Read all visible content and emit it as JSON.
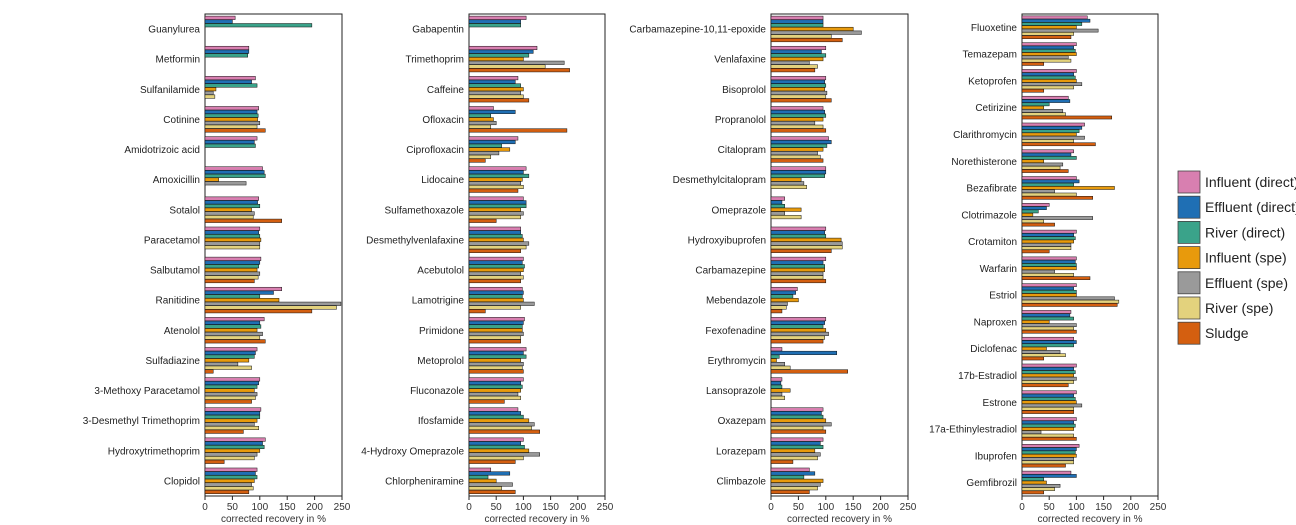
{
  "chart_data": {
    "type": "bar",
    "orientation": "horizontal",
    "grid": false,
    "legend_position": "right",
    "series_names": [
      "Influent (direct)",
      "Effluent (direct)",
      "River (direct)",
      "Influent (spe)",
      "Effluent (spe)",
      "River (spe)",
      "Sludge"
    ],
    "series_colors": [
      "#d87fb0",
      "#1f6fb4",
      "#3aa38a",
      "#e89a0c",
      "#9a9a9a",
      "#e3d27d",
      "#d45f10"
    ],
    "panels": [
      {
        "xlabel": "corrected recovery in %",
        "xlim": [
          0,
          250
        ],
        "xticks": [
          0,
          50,
          100,
          150,
          200,
          250
        ],
        "categories": [
          {
            "name": "Guanylurea",
            "values": [
              55,
              50,
              195,
              0,
              0,
              0,
              0
            ]
          },
          {
            "name": "Metformin",
            "values": [
              80,
              80,
              78,
              0,
              0,
              0,
              0
            ]
          },
          {
            "name": "Sulfanilamide",
            "values": [
              92,
              85,
              95,
              20,
              15,
              18,
              0
            ]
          },
          {
            "name": "Cotinine",
            "values": [
              98,
              95,
              97,
              96,
              100,
              95,
              110
            ]
          },
          {
            "name": "Amidotrizoic acid",
            "values": [
              95,
              90,
              92,
              0,
              0,
              0,
              0
            ]
          },
          {
            "name": "Amoxicillin",
            "values": [
              105,
              108,
              110,
              25,
              75,
              0,
              0
            ]
          },
          {
            "name": "Sotalol",
            "values": [
              98,
              96,
              100,
              85,
              90,
              88,
              140
            ]
          },
          {
            "name": "Paracetamol",
            "values": [
              100,
              98,
              100,
              102,
              100,
              100,
              0
            ]
          },
          {
            "name": "Salbutamol",
            "values": [
              102,
              100,
              98,
              95,
              100,
              97,
              90
            ]
          },
          {
            "name": "Ranitidine",
            "values": [
              140,
              125,
              100,
              135,
              248,
              240,
              195
            ]
          },
          {
            "name": "Atenolol",
            "values": [
              108,
              100,
              102,
              95,
              105,
              100,
              110
            ]
          },
          {
            "name": "Sulfadiazine",
            "values": [
              95,
              92,
              90,
              80,
              60,
              85,
              15
            ]
          },
          {
            "name": "3-Methoxy Paracetamol",
            "values": [
              100,
              98,
              95,
              90,
              95,
              92,
              85
            ]
          },
          {
            "name": "3-Desmethyl Trimethoprim",
            "values": [
              102,
              100,
              100,
              95,
              90,
              98,
              70
            ]
          },
          {
            "name": "Hydroxytrimethoprim",
            "values": [
              110,
              105,
              108,
              100,
              95,
              90,
              35
            ]
          },
          {
            "name": "Clopidol",
            "values": [
              95,
              92,
              95,
              90,
              85,
              88,
              80
            ]
          }
        ]
      },
      {
        "xlabel": "corrected recovery in %",
        "xlim": [
          0,
          250
        ],
        "xticks": [
          0,
          50,
          100,
          150,
          200,
          250
        ],
        "categories": [
          {
            "name": "Gabapentin",
            "values": [
              105,
              95,
              95,
              0,
              0,
              0,
              0
            ]
          },
          {
            "name": "Trimethoprim",
            "values": [
              125,
              118,
              110,
              100,
              175,
              140,
              185
            ]
          },
          {
            "name": "Caffeine",
            "values": [
              90,
              85,
              95,
              100,
              95,
              100,
              110
            ]
          },
          {
            "name": "Ofloxacin",
            "values": [
              45,
              85,
              40,
              45,
              50,
              40,
              180
            ]
          },
          {
            "name": "Ciprofloxacin",
            "values": [
              90,
              85,
              60,
              75,
              55,
              40,
              30
            ]
          },
          {
            "name": "Lidocaine",
            "values": [
              105,
              100,
              110,
              98,
              95,
              100,
              90
            ]
          },
          {
            "name": "Sulfamethoxazole",
            "values": [
              100,
              105,
              105,
              95,
              100,
              95,
              50
            ]
          },
          {
            "name": "Desmethylvenlafaxine",
            "values": [
              95,
              95,
              98,
              100,
              110,
              105,
              95
            ]
          },
          {
            "name": "Acebutolol",
            "values": [
              100,
              98,
              102,
              100,
              95,
              100,
              95
            ]
          },
          {
            "name": "Lamotrigine",
            "values": [
              98,
              100,
              98,
              100,
              120,
              95,
              30
            ]
          },
          {
            "name": "Primidone",
            "values": [
              102,
              100,
              98,
              98,
              100,
              95,
              95
            ]
          },
          {
            "name": "Metoprolol",
            "values": [
              105,
              100,
              105,
              95,
              100,
              98,
              100
            ]
          },
          {
            "name": "Fluconazole",
            "values": [
              100,
              95,
              98,
              95,
              90,
              95,
              65
            ]
          },
          {
            "name": "Ifosfamide",
            "values": [
              90,
              95,
              100,
              110,
              120,
              115,
              130
            ]
          },
          {
            "name": "4-Hydroxy Omeprazole",
            "values": [
              100,
              95,
              102,
              110,
              130,
              100,
              85
            ]
          },
          {
            "name": "Chlorpheniramine",
            "values": [
              40,
              75,
              35,
              50,
              80,
              60,
              85
            ]
          }
        ]
      },
      {
        "xlabel": "corrected recovery in %",
        "xlim": [
          0,
          250
        ],
        "xticks": [
          0,
          50,
          100,
          150,
          200,
          250
        ],
        "categories": [
          {
            "name": "Carbamazepine-10,11-epoxide",
            "values": [
              95,
              95,
              95,
              150,
              165,
              110,
              130
            ]
          },
          {
            "name": "Venlafaxine",
            "values": [
              100,
              92,
              100,
              95,
              70,
              85,
              80
            ]
          },
          {
            "name": "Bisoprolol",
            "values": [
              100,
              98,
              100,
              98,
              102,
              100,
              110
            ]
          },
          {
            "name": "Propranolol",
            "values": [
              95,
              98,
              100,
              95,
              80,
              95,
              100
            ]
          },
          {
            "name": "Citalopram",
            "values": [
              105,
              110,
              102,
              95,
              85,
              90,
              95
            ]
          },
          {
            "name": "Desmethylcitalopram",
            "values": [
              100,
              100,
              98,
              55,
              60,
              65,
              0
            ]
          },
          {
            "name": "Omeprazole",
            "values": [
              25,
              20,
              25,
              55,
              25,
              55,
              0
            ]
          },
          {
            "name": "Hydroxyibuprofen",
            "values": [
              100,
              98,
              100,
              128,
              130,
              130,
              110
            ]
          },
          {
            "name": "Carbamazepine",
            "values": [
              100,
              95,
              98,
              98,
              95,
              95,
              100
            ]
          },
          {
            "name": "Mebendazole",
            "values": [
              48,
              45,
              40,
              50,
              30,
              28,
              20
            ]
          },
          {
            "name": "Fexofenadine",
            "values": [
              100,
              98,
              95,
              100,
              105,
              98,
              95
            ]
          },
          {
            "name": "Erythromycin",
            "values": [
              20,
              120,
              15,
              10,
              25,
              35,
              140
            ]
          },
          {
            "name": "Lansoprazole",
            "values": [
              20,
              18,
              20,
              35,
              20,
              25,
              0
            ]
          },
          {
            "name": "Oxazepam",
            "values": [
              95,
              92,
              95,
              100,
              110,
              95,
              100
            ]
          },
          {
            "name": "Lorazepam",
            "values": [
              95,
              90,
              95,
              80,
              90,
              85,
              40
            ]
          },
          {
            "name": "Climbazole",
            "values": [
              70,
              80,
              60,
              95,
              90,
              85,
              70
            ]
          }
        ]
      },
      {
        "xlabel": "corrected recovery in %",
        "xlim": [
          0,
          250
        ],
        "xticks": [
          0,
          50,
          100,
          150,
          200,
          250
        ],
        "categories": [
          {
            "name": "Fluoxetine",
            "values": [
              120,
              125,
              110,
              100,
              140,
              95,
              90
            ]
          },
          {
            "name": "Temazepam",
            "values": [
              100,
              95,
              98,
              100,
              85,
              90,
              40
            ]
          },
          {
            "name": "Ketoprofen",
            "values": [
              100,
              95,
              98,
              100,
              110,
              95,
              40
            ]
          },
          {
            "name": "Cetirizine",
            "values": [
              85,
              88,
              50,
              40,
              75,
              80,
              165
            ]
          },
          {
            "name": "Clarithromycin",
            "values": [
              115,
              110,
              105,
              100,
              115,
              95,
              135
            ]
          },
          {
            "name": "Norethisterone",
            "values": [
              95,
              90,
              100,
              40,
              75,
              70,
              85
            ]
          },
          {
            "name": "Bezafibrate",
            "values": [
              100,
              105,
              95,
              170,
              60,
              100,
              130
            ]
          },
          {
            "name": "Clotrimazole",
            "values": [
              50,
              45,
              30,
              20,
              130,
              40,
              60
            ]
          },
          {
            "name": "Crotamiton",
            "values": [
              100,
              95,
              98,
              95,
              90,
              90,
              50
            ]
          },
          {
            "name": "Warfarin",
            "values": [
              100,
              98,
              100,
              100,
              60,
              95,
              125
            ]
          },
          {
            "name": "Estriol",
            "values": [
              100,
              95,
              100,
              100,
              170,
              178,
              175
            ]
          },
          {
            "name": "Naproxen",
            "values": [
              90,
              88,
              95,
              50,
              100,
              95,
              100
            ]
          },
          {
            "name": "Diclofenac",
            "values": [
              95,
              100,
              95,
              45,
              70,
              80,
              40
            ]
          },
          {
            "name": "17b-Estradiol",
            "values": [
              100,
              95,
              98,
              95,
              100,
              95,
              85
            ]
          },
          {
            "name": "Estrone",
            "values": [
              100,
              95,
              98,
              100,
              110,
              95,
              95
            ]
          },
          {
            "name": "17a-Ethinylestradiol",
            "values": [
              100,
              95,
              98,
              95,
              35,
              95,
              100
            ]
          },
          {
            "name": "Ibuprofen",
            "values": [
              105,
              100,
              98,
              100,
              95,
              95,
              80
            ]
          },
          {
            "name": "Gemfibrozil",
            "values": [
              90,
              100,
              40,
              45,
              70,
              60,
              40
            ]
          }
        ]
      }
    ]
  }
}
